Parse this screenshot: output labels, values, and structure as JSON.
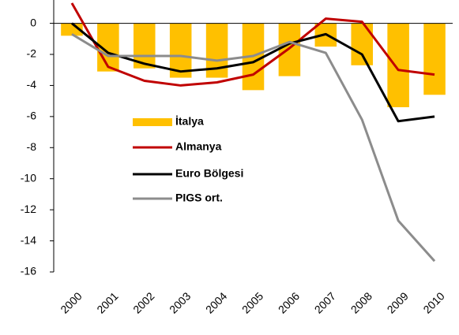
{
  "chart_data": {
    "type": "bar",
    "categories": [
      "2000",
      "2001",
      "2002",
      "2003",
      "2004",
      "2005",
      "2006",
      "2007",
      "2008",
      "2009",
      "2010"
    ],
    "ylim": [
      -16,
      1.5
    ],
    "yticks": [
      0,
      -2,
      -4,
      -6,
      -8,
      -10,
      -12,
      -14,
      -16
    ],
    "series": [
      {
        "name": "İtalya",
        "type": "bar",
        "color": "#ffc000",
        "values": [
          -0.8,
          -3.1,
          -2.9,
          -3.5,
          -3.5,
          -4.3,
          -3.4,
          -1.5,
          -2.7,
          -5.4,
          -4.6
        ]
      },
      {
        "name": "Almanya",
        "type": "line",
        "color": "#c00000",
        "values": [
          1.3,
          -2.8,
          -3.7,
          -4.0,
          -3.8,
          -3.3,
          -1.6,
          0.3,
          0.1,
          -3.0,
          -3.3
        ]
      },
      {
        "name": "Euro Bölgesi",
        "type": "line",
        "color": "#000000",
        "values": [
          0.0,
          -1.9,
          -2.6,
          -3.1,
          -2.9,
          -2.5,
          -1.3,
          -0.7,
          -2.0,
          -6.3,
          -6.0
        ]
      },
      {
        "name": "PIGS ort.",
        "type": "line",
        "color": "#8c8c8c",
        "values": [
          -0.7,
          -2.1,
          -2.1,
          -2.1,
          -2.4,
          -2.1,
          -1.2,
          -1.9,
          -6.2,
          -12.7,
          -15.3
        ]
      }
    ]
  }
}
